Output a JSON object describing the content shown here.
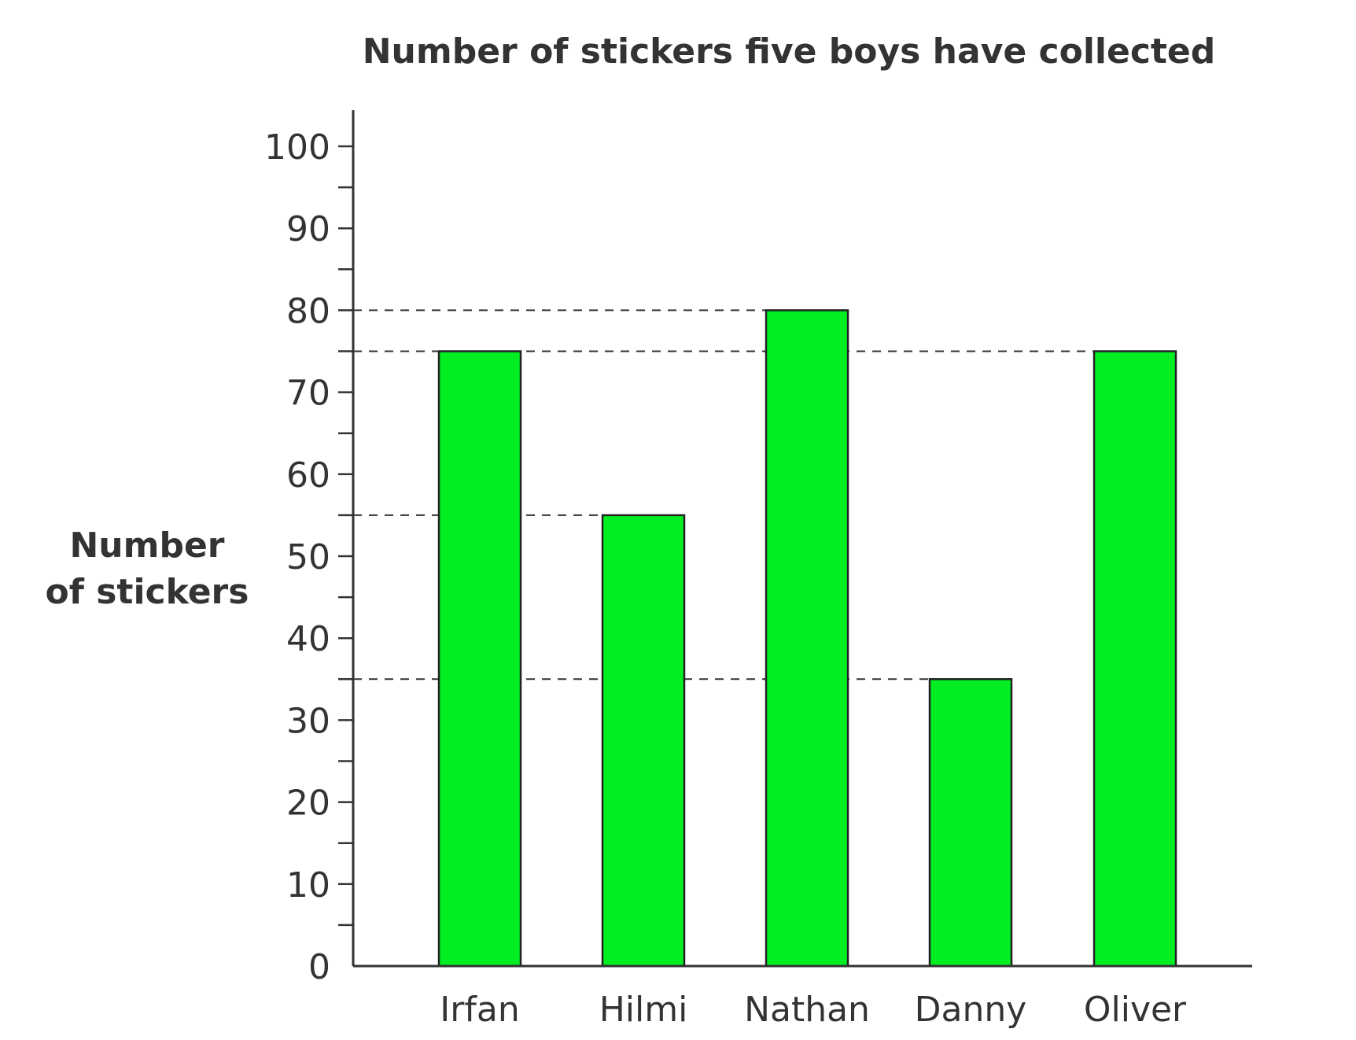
{
  "chart_data": {
    "type": "bar",
    "title": "Number of stickers five boys have collected",
    "xlabel": "",
    "ylabel": [
      "Number",
      "of stickers"
    ],
    "categories": [
      "Irfan",
      "Hilmi",
      "Nathan",
      "Danny",
      "Oliver"
    ],
    "values": [
      75,
      55,
      80,
      35,
      75
    ],
    "ylim": [
      0,
      100
    ],
    "major_ticks": [
      "0",
      "10",
      "20",
      "30",
      "40",
      "50",
      "60",
      "70",
      "80",
      "90",
      "100"
    ],
    "minor_tick_step": 5,
    "guide_lines": [
      80,
      75,
      55,
      35
    ],
    "grid": false,
    "legend": "none",
    "bar_color": "#00ee22",
    "bar_outline_color": "#222222",
    "axis_color": "#333333"
  }
}
